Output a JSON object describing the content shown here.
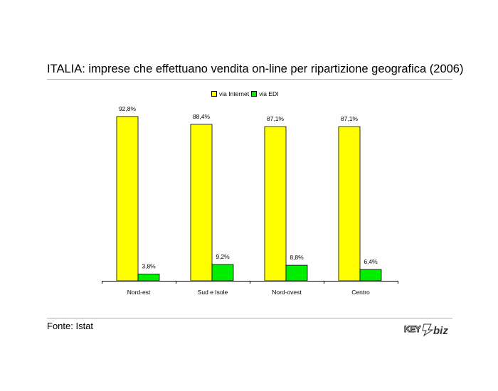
{
  "title": "ITALIA: imprese che effettuano vendita on-line per ripartizione geografica (2006)",
  "source": "Fonte: Istat",
  "logo": {
    "text": "KEY4biz",
    "part1": "KEY",
    "part2": "biz",
    "color": "#333333"
  },
  "legend": {
    "items": [
      {
        "label": "via Internet",
        "color": "#FFFF00"
      },
      {
        "label": "via EDI",
        "color": "#00EE00"
      }
    ]
  },
  "chart_data": {
    "type": "bar",
    "title": "",
    "xlabel": "",
    "ylabel": "",
    "categories": [
      "Nord-est",
      "Sud e Isole",
      "Nord-ovest",
      "Centro"
    ],
    "series": [
      {
        "name": "via Internet",
        "color": "#FFFF00",
        "values": [
          92.8,
          88.4,
          87.1,
          87.1
        ],
        "labels": [
          "92,8%",
          "88,4%",
          "87,1%",
          "87,1%"
        ]
      },
      {
        "name": "via EDI",
        "color": "#00EE00",
        "values": [
          3.8,
          9.2,
          8.8,
          6.4
        ],
        "labels": [
          "3,8%",
          "9,2%",
          "8,8%",
          "6,4%"
        ]
      }
    ],
    "ylim": [
      0,
      100
    ],
    "grid": false,
    "legend_position": "top"
  }
}
